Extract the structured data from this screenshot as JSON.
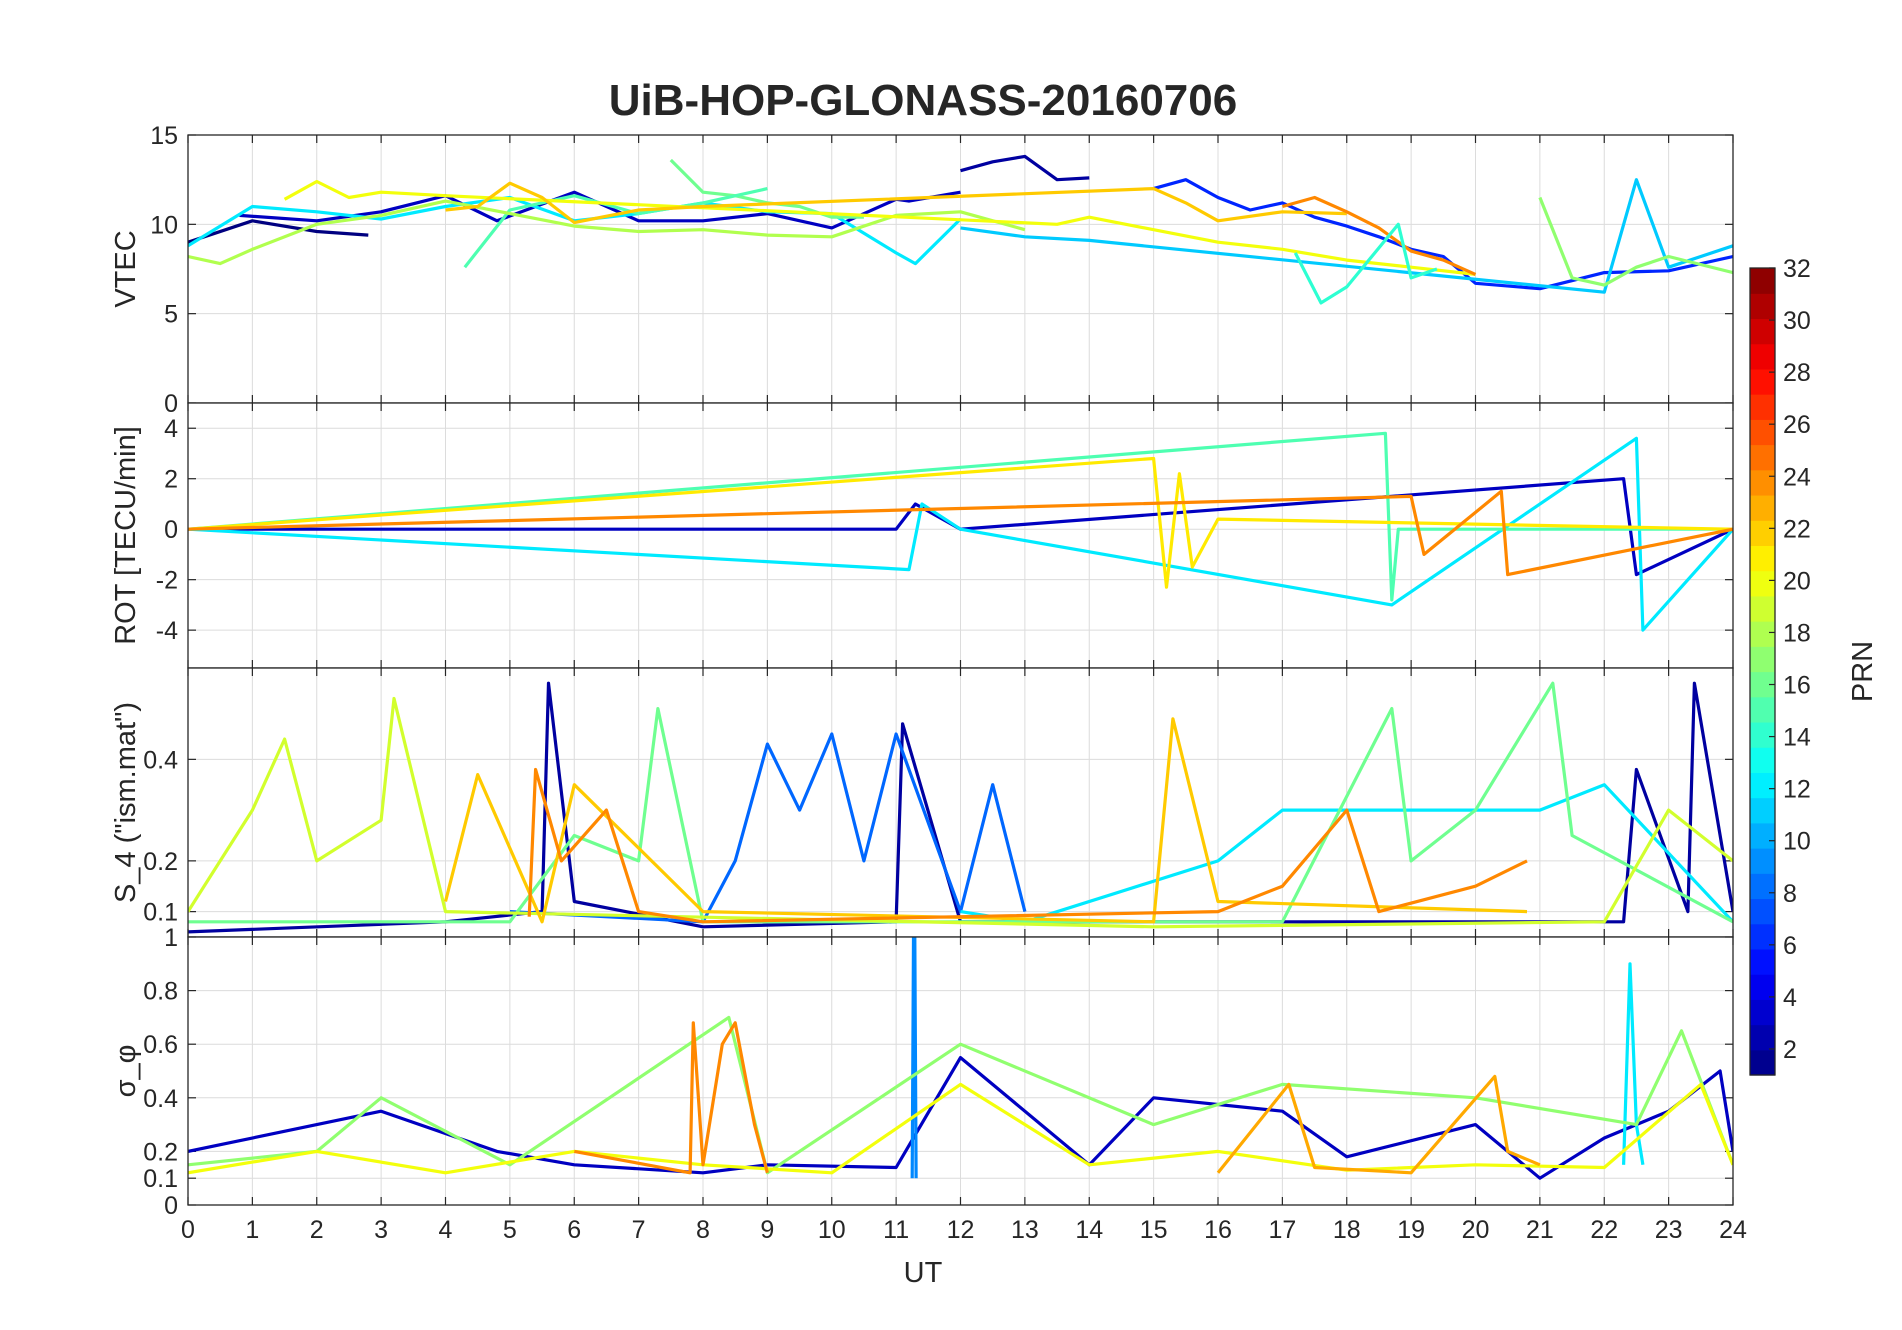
{
  "chart_data": {
    "type": "line",
    "title": "UiB-HOP-GLONASS-20160706",
    "xlabel": "UT",
    "xlim": [
      0,
      24
    ],
    "xticks": [
      "0",
      "1",
      "2",
      "3",
      "4",
      "5",
      "6",
      "7",
      "8",
      "9",
      "10",
      "11",
      "12",
      "13",
      "14",
      "15",
      "16",
      "17",
      "18",
      "19",
      "20",
      "21",
      "22",
      "23",
      "24"
    ],
    "colormap": "jet",
    "colorbar": {
      "label": "PRN",
      "range": [
        1,
        32
      ],
      "ticks": [
        "2",
        "4",
        "6",
        "8",
        "10",
        "12",
        "14",
        "16",
        "18",
        "20",
        "22",
        "24",
        "26",
        "28",
        "30",
        "32"
      ],
      "placement": "right"
    },
    "panels": [
      {
        "ylabel": "VTEC",
        "ylim": [
          0,
          15
        ],
        "yticks": [
          "0",
          "5",
          "10",
          "15"
        ],
        "grid": true,
        "series": [
          {
            "prn": 1,
            "x": [
              0,
              1,
              2,
              2.8
            ],
            "y": [
              9.0,
              10.2,
              9.6,
              9.4
            ]
          },
          {
            "prn": 3,
            "x": [
              0.8,
              2,
              3,
              4,
              4.8,
              6,
              7,
              8,
              9,
              10,
              11,
              11.2,
              12
            ],
            "y": [
              10.5,
              10.2,
              10.7,
              11.6,
              10.2,
              11.8,
              10.2,
              10.2,
              10.6,
              9.8,
              11.4,
              11.3,
              11.8
            ]
          },
          {
            "prn": 2,
            "x": [
              12,
              12.5,
              13,
              13.5,
              14
            ],
            "y": [
              13.0,
              13.5,
              13.8,
              12.5,
              12.6
            ]
          },
          {
            "prn": 6,
            "x": [
              15,
              15.5,
              16,
              16.5,
              17,
              17.5,
              18,
              18.5,
              19,
              19.5,
              20,
              21,
              22,
              23,
              24
            ],
            "y": [
              12.0,
              12.5,
              11.5,
              10.8,
              11.2,
              10.4,
              9.9,
              9.3,
              8.6,
              8.2,
              6.7,
              6.4,
              7.3,
              7.4,
              8.2
            ]
          },
          {
            "prn": 12,
            "x": [
              0,
              1,
              2,
              3,
              4,
              5,
              6,
              7,
              8,
              9,
              10,
              11,
              11.3,
              12
            ],
            "y": [
              8.8,
              11.0,
              10.7,
              10.3,
              11.0,
              11.5,
              10.2,
              10.6,
              11.2,
              10.7,
              10.6,
              8.4,
              7.8,
              10.3
            ]
          },
          {
            "prn": 11,
            "x": [
              12,
              13,
              14,
              22,
              22.5,
              23,
              24
            ],
            "y": [
              9.8,
              9.3,
              9.1,
              6.2,
              12.5,
              7.6,
              8.8
            ]
          },
          {
            "prn": 16,
            "x": [
              7.5,
              8,
              8.5,
              9,
              9.5,
              10,
              10.5
            ],
            "y": [
              13.6,
              11.8,
              11.6,
              11.2,
              11.0,
              10.4,
              10.4
            ]
          },
          {
            "prn": 15,
            "x": [
              4.3,
              5,
              6,
              7,
              8,
              9
            ],
            "y": [
              7.6,
              10.8,
              11.6,
              10.6,
              11.2,
              12.0
            ]
          },
          {
            "prn": 18,
            "x": [
              0,
              0.5,
              1,
              2,
              3,
              4,
              5,
              6,
              7,
              8,
              9,
              10,
              11,
              12,
              13
            ],
            "y": [
              8.2,
              7.8,
              8.6,
              10.0,
              10.5,
              11.3,
              10.6,
              9.9,
              9.6,
              9.7,
              9.4,
              9.3,
              10.5,
              10.7,
              9.7
            ]
          },
          {
            "prn": 20,
            "x": [
              1.5,
              2,
              2.5,
              3,
              4,
              13.5,
              14,
              15,
              16,
              17,
              18,
              19,
              20
            ],
            "y": [
              11.4,
              12.4,
              11.5,
              11.8,
              11.6,
              10.0,
              10.4,
              9.7,
              9.0,
              8.6,
              8.0,
              7.6,
              7.2
            ]
          },
          {
            "prn": 22,
            "x": [
              4,
              4.5,
              5,
              5.5,
              6,
              7,
              8,
              15,
              15.5,
              16,
              17,
              18
            ],
            "y": [
              10.8,
              11.0,
              12.3,
              11.5,
              10.1,
              10.8,
              11.0,
              12.0,
              11.2,
              10.2,
              10.7,
              10.6
            ]
          },
          {
            "prn": 24,
            "x": [
              17,
              17.5,
              18,
              18.5,
              19,
              19.5,
              20
            ],
            "y": [
              11.0,
              11.5,
              10.7,
              9.8,
              8.5,
              8.0,
              7.2
            ]
          },
          {
            "prn": 14,
            "x": [
              17.2,
              17.6,
              18,
              18.8,
              19,
              19.4
            ],
            "y": [
              8.4,
              5.6,
              6.5,
              10.0,
              7.0,
              7.5
            ]
          },
          {
            "prn": 17,
            "x": [
              21,
              21.5,
              22,
              22.5,
              23,
              24
            ],
            "y": [
              11.5,
              7.0,
              6.6,
              7.6,
              8.2,
              7.3
            ]
          }
        ]
      },
      {
        "ylabel": "ROT [TECU/min]",
        "ylim": [
          -5.5,
          5
        ],
        "yticks": [
          "-4",
          "-2",
          "0",
          "2",
          "4"
        ],
        "grid": true,
        "series": [
          {
            "prn": 3,
            "x": [
              0,
              11,
              11.3,
              12,
              22.3,
              22.5,
              24
            ],
            "y": [
              0,
              0,
              1.0,
              0,
              2.0,
              -1.8,
              0
            ]
          },
          {
            "prn": 12,
            "x": [
              0,
              11.2,
              11.4,
              12,
              18.7,
              22.5,
              22.6,
              24
            ],
            "y": [
              0,
              -1.6,
              1.0,
              0,
              -3.0,
              3.6,
              -4.0,
              0
            ]
          },
          {
            "prn": 15,
            "x": [
              0,
              18.6,
              18.7,
              18.8,
              24
            ],
            "y": [
              0,
              3.8,
              -2.8,
              0,
              0
            ]
          },
          {
            "prn": 21,
            "x": [
              0,
              15,
              15.2,
              15.4,
              15.6,
              16,
              24
            ],
            "y": [
              0,
              2.8,
              -2.3,
              2.2,
              -1.5,
              0.4,
              0
            ]
          },
          {
            "prn": 24,
            "x": [
              0,
              19,
              19.2,
              20.4,
              20.5,
              24
            ],
            "y": [
              0,
              1.3,
              -1.0,
              1.5,
              -1.8,
              0
            ]
          }
        ]
      },
      {
        "ylabel": "S_4 (\"ism.mat\")",
        "ylim": [
          0.05,
          0.58
        ],
        "yticks": [
          "0.1",
          "0.2",
          "0.4"
        ],
        "grid": true,
        "series": [
          {
            "prn": 2,
            "x": [
              0,
              4,
              5.5,
              5.6,
              6,
              8,
              11,
              11.1,
              12,
              22.3,
              22.5,
              23.3,
              23.4,
              24
            ],
            "y": [
              0.06,
              0.08,
              0.1,
              0.55,
              0.12,
              0.07,
              0.08,
              0.47,
              0.08,
              0.08,
              0.38,
              0.1,
              0.55,
              0.1
            ]
          },
          {
            "prn": 8,
            "x": [
              5,
              8,
              8.5,
              9,
              9.5,
              10,
              10.5,
              11,
              12,
              12.5,
              13
            ],
            "y": [
              0.1,
              0.08,
              0.2,
              0.43,
              0.3,
              0.45,
              0.2,
              0.45,
              0.1,
              0.35,
              0.1
            ]
          },
          {
            "prn": 12,
            "x": [
              12,
              13,
              16,
              17,
              21,
              22,
              24
            ],
            "y": [
              0.1,
              0.08,
              0.2,
              0.3,
              0.3,
              0.35,
              0.08
            ]
          },
          {
            "prn": 16,
            "x": [
              0,
              5,
              6,
              7,
              7.3,
              8,
              17,
              18.7,
              19,
              20,
              21.2,
              21.5,
              24
            ],
            "y": [
              0.08,
              0.08,
              0.25,
              0.2,
              0.5,
              0.08,
              0.08,
              0.5,
              0.2,
              0.3,
              0.55,
              0.25,
              0.08
            ]
          },
          {
            "prn": 19,
            "x": [
              0,
              1,
              1.5,
              2,
              3,
              3.2,
              4,
              15,
              22,
              23,
              24
            ],
            "y": [
              0.1,
              0.3,
              0.44,
              0.2,
              0.28,
              0.52,
              0.1,
              0.07,
              0.08,
              0.3,
              0.2
            ]
          },
          {
            "prn": 22,
            "x": [
              4,
              4.5,
              5.5,
              6,
              8,
              15,
              15.3,
              16,
              20.8
            ],
            "y": [
              0.12,
              0.37,
              0.08,
              0.35,
              0.1,
              0.08,
              0.48,
              0.12,
              0.1
            ]
          },
          {
            "prn": 24,
            "x": [
              5.3,
              5.4,
              5.8,
              6.5,
              7,
              8,
              16,
              17,
              18,
              18.5,
              20,
              20.8
            ],
            "y": [
              0.09,
              0.38,
              0.2,
              0.3,
              0.1,
              0.08,
              0.1,
              0.15,
              0.3,
              0.1,
              0.15,
              0.2
            ]
          }
        ]
      },
      {
        "ylabel": "σ_φ",
        "ylim": [
          0,
          1
        ],
        "yticks": [
          "0",
          "0.1",
          "0.2",
          "0.4",
          "0.6",
          "0.8",
          "1"
        ],
        "grid": true,
        "series": [
          {
            "prn": 3,
            "x": [
              0,
              3,
              4.8,
              6,
              8,
              9,
              11,
              12,
              14,
              15,
              17,
              18,
              20,
              21,
              22,
              23,
              23.8,
              24
            ],
            "y": [
              0.2,
              0.35,
              0.2,
              0.15,
              0.12,
              0.15,
              0.14,
              0.55,
              0.15,
              0.4,
              0.35,
              0.18,
              0.3,
              0.1,
              0.25,
              0.35,
              0.5,
              0.2
            ]
          },
          {
            "prn": 9,
            "x": [
              11.25,
              11.27,
              11.29,
              11.31
            ],
            "y": [
              0.1,
              1.0,
              1.0,
              0.1
            ]
          },
          {
            "prn": 12,
            "x": [
              22.3,
              22.4,
              22.5,
              22.6
            ],
            "y": [
              0.15,
              0.9,
              0.3,
              0.15
            ]
          },
          {
            "prn": 17,
            "x": [
              0,
              2,
              3,
              5,
              8.4,
              9,
              12,
              15,
              17,
              20,
              22.5,
              23.2,
              24
            ],
            "y": [
              0.15,
              0.2,
              0.4,
              0.15,
              0.7,
              0.12,
              0.6,
              0.3,
              0.45,
              0.4,
              0.3,
              0.65,
              0.15
            ]
          },
          {
            "prn": 20,
            "x": [
              0,
              2,
              4,
              6,
              8,
              10,
              12,
              14,
              16,
              18,
              20,
              22,
              23.5,
              24
            ],
            "y": [
              0.12,
              0.2,
              0.12,
              0.2,
              0.15,
              0.12,
              0.45,
              0.15,
              0.2,
              0.13,
              0.15,
              0.14,
              0.45,
              0.15
            ]
          },
          {
            "prn": 24,
            "x": [
              6,
              7.8,
              7.85,
              8,
              8.3,
              8.5,
              8.8,
              9
            ],
            "y": [
              0.2,
              0.12,
              0.68,
              0.15,
              0.6,
              0.68,
              0.3,
              0.12
            ]
          },
          {
            "prn": 23,
            "x": [
              16,
              17.1,
              17.5,
              19,
              20.3,
              20.5,
              21
            ],
            "y": [
              0.12,
              0.45,
              0.14,
              0.12,
              0.48,
              0.2,
              0.15
            ]
          }
        ]
      }
    ]
  }
}
